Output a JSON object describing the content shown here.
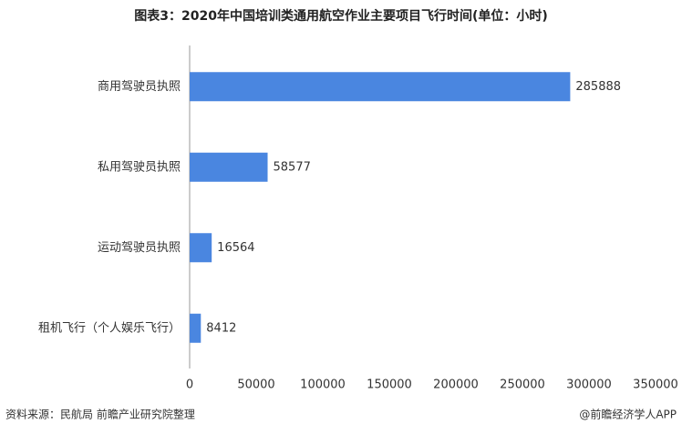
{
  "chart_data": {
    "type": "hbar",
    "title": "图表3：2020年中国培训类通用航空作业主要项目飞行时间(单位：小时)",
    "categories": [
      "商用驾驶员执照",
      "私用驾驶员执照",
      "运动驾驶员执照",
      "租机飞行（个人娱乐飞行）"
    ],
    "values": [
      285888,
      58577,
      16564,
      8412
    ],
    "color": "#4a86e0",
    "xlim": [
      0,
      350000
    ],
    "xticks": [
      0,
      50000,
      100000,
      150000,
      200000,
      250000,
      300000,
      350000
    ],
    "source": "资料来源：民航局 前瞻产业研究院整理",
    "credit": "@前瞻经济学人APP"
  }
}
